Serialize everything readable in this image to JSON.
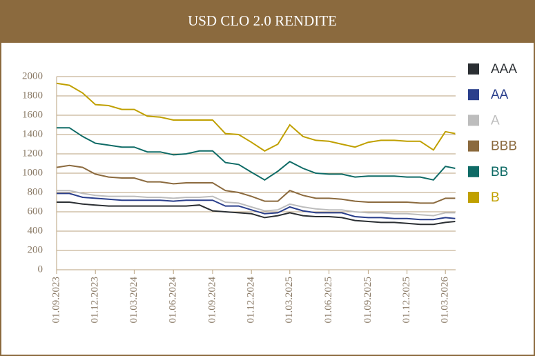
{
  "chart_data": {
    "type": "line",
    "title": "USD CLO 2.0 RENDITE",
    "x": [
      "01.09.2023",
      "01.10.2023",
      "01.11.2023",
      "01.12.2023",
      "01.01.2024",
      "01.02.2024",
      "01.03.2024",
      "01.04.2024",
      "01.05.2024",
      "01.06.2024",
      "01.07.2024",
      "01.08.2024",
      "01.09.2024",
      "01.10.2024",
      "01.11.2024",
      "01.12.2024",
      "01.01.2025",
      "01.02.2025",
      "01.03.2025",
      "01.04.2025",
      "01.05.2025",
      "01.06.2025",
      "01.07.2025",
      "01.08.2025",
      "01.09.2025",
      "01.10.2025",
      "01.11.2025",
      "01.12.2025",
      "01.01.2026",
      "01.02.2026",
      "01.03.2026",
      "24.03.2026"
    ],
    "series": [
      {
        "name": "AAA",
        "color": "#2b2f33",
        "values": [
          700,
          700,
          680,
          670,
          660,
          660,
          660,
          660,
          660,
          660,
          660,
          670,
          610,
          600,
          590,
          580,
          540,
          560,
          590,
          560,
          550,
          550,
          540,
          510,
          500,
          490,
          490,
          480,
          470,
          470,
          490,
          500
        ]
      },
      {
        "name": "AA",
        "color": "#2a3f8c",
        "values": [
          790,
          790,
          750,
          740,
          730,
          720,
          720,
          720,
          720,
          710,
          720,
          720,
          720,
          660,
          660,
          620,
          580,
          590,
          650,
          610,
          590,
          590,
          590,
          550,
          540,
          540,
          530,
          530,
          520,
          520,
          540,
          530
        ]
      },
      {
        "name": "A",
        "color": "#bdbdbd",
        "values": [
          820,
          820,
          790,
          770,
          760,
          760,
          760,
          750,
          750,
          740,
          750,
          750,
          760,
          700,
          690,
          650,
          610,
          620,
          680,
          650,
          630,
          620,
          620,
          600,
          590,
          590,
          580,
          580,
          570,
          560,
          590,
          590
        ]
      },
      {
        "name": "BBB",
        "color": "#8b6a3e",
        "values": [
          1060,
          1080,
          1060,
          990,
          960,
          950,
          950,
          910,
          910,
          890,
          900,
          900,
          900,
          820,
          800,
          760,
          710,
          710,
          820,
          770,
          740,
          740,
          730,
          710,
          700,
          700,
          700,
          700,
          690,
          690,
          740,
          740
        ]
      },
      {
        "name": "BB",
        "color": "#0f6b66",
        "values": [
          1470,
          1470,
          1380,
          1310,
          1290,
          1270,
          1270,
          1220,
          1220,
          1190,
          1200,
          1230,
          1230,
          1110,
          1090,
          1010,
          930,
          1020,
          1120,
          1050,
          1000,
          990,
          990,
          960,
          970,
          970,
          970,
          960,
          960,
          930,
          1070,
          1050
        ]
      },
      {
        "name": "B",
        "color": "#c0a000",
        "values": [
          1930,
          1910,
          1830,
          1710,
          1700,
          1660,
          1660,
          1590,
          1580,
          1550,
          1550,
          1550,
          1550,
          1410,
          1400,
          1320,
          1230,
          1300,
          1500,
          1380,
          1340,
          1330,
          1300,
          1270,
          1320,
          1340,
          1340,
          1330,
          1330,
          1240,
          1430,
          1410
        ]
      }
    ],
    "xlim": [
      "01.09.2023",
      "25.03.2026"
    ],
    "xticks": [
      "01.09.2023",
      "01.12.2023",
      "01.03.2024",
      "01.06.2024",
      "01.09.2024",
      "01.12.2024",
      "01.03.2025",
      "01.06.2025",
      "01.09.2025",
      "01.12.2025",
      "01.03.2026"
    ],
    "ylim": [
      0,
      2000
    ],
    "yticks": [
      0,
      200,
      400,
      600,
      800,
      1000,
      1200,
      1400,
      1600,
      1800,
      2000
    ],
    "grid": true
  }
}
